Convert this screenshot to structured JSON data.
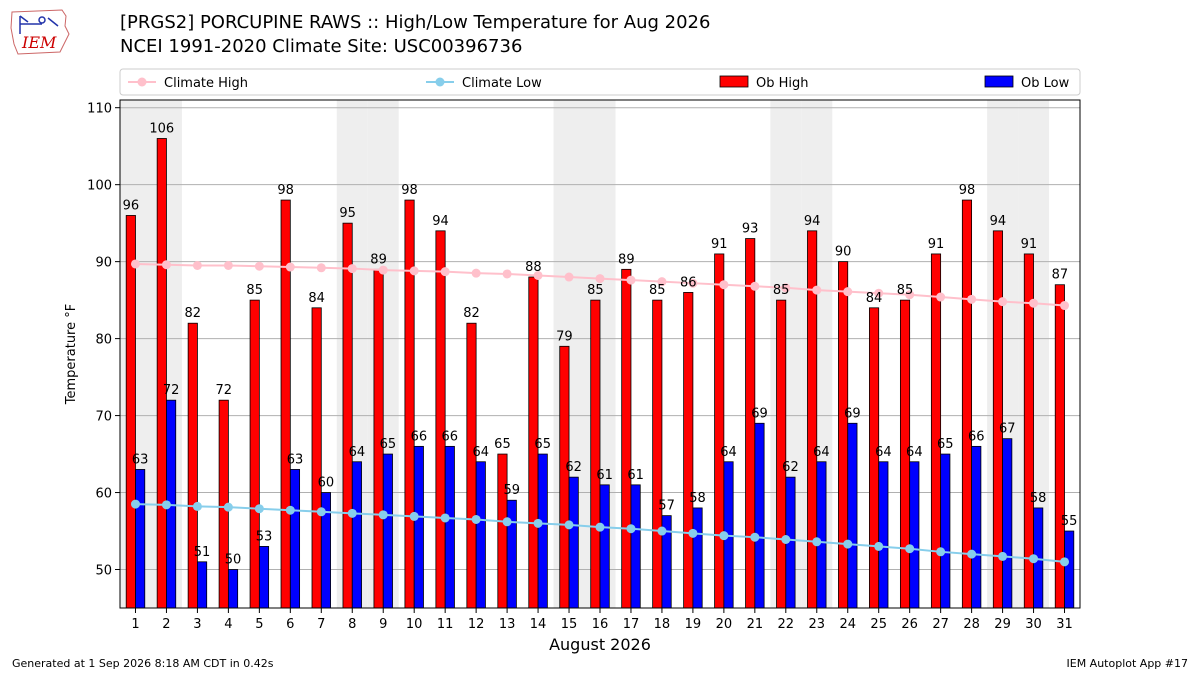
{
  "header": {
    "title_line1": "[PRGS2] PORCUPINE RAWS :: High/Low Temperature for Aug 2026",
    "title_line2": "NCEI 1991-2020 Climate Site: USC00396736",
    "logo_text": "IEM"
  },
  "footer": {
    "generated": "Generated at 1 Sep 2026 8:18 AM CDT in 0.42s",
    "app": "IEM Autoplot App #17"
  },
  "colors": {
    "ob_high": "#ff0000",
    "ob_low": "#0000ff",
    "climate_high": "#ffc0cb",
    "climate_low": "#87ceeb",
    "weekend_band": "#eeeeee",
    "logo": "#cc0000"
  },
  "chart_data": {
    "type": "bar",
    "xlabel": "August 2026",
    "ylabel": "Temperature °F",
    "ylim": [
      45,
      111
    ],
    "yticks": [
      50,
      60,
      70,
      80,
      90,
      100,
      110
    ],
    "grid": true,
    "legend_position": "top",
    "categories": [
      "1",
      "2",
      "3",
      "4",
      "5",
      "6",
      "7",
      "8",
      "9",
      "10",
      "11",
      "12",
      "13",
      "14",
      "15",
      "16",
      "17",
      "18",
      "19",
      "20",
      "21",
      "22",
      "23",
      "24",
      "25",
      "26",
      "27",
      "28",
      "29",
      "30",
      "31"
    ],
    "shaded_days": [
      1,
      2,
      8,
      9,
      15,
      16,
      22,
      23,
      29,
      30
    ],
    "series": [
      {
        "name": "Climate High",
        "kind": "line",
        "color": "#ffc0cb",
        "values": [
          89.7,
          89.6,
          89.5,
          89.5,
          89.4,
          89.3,
          89.2,
          89.1,
          88.9,
          88.8,
          88.7,
          88.5,
          88.4,
          88.2,
          88.0,
          87.8,
          87.6,
          87.4,
          87.2,
          87.0,
          86.8,
          86.6,
          86.3,
          86.1,
          85.9,
          85.7,
          85.4,
          85.1,
          84.8,
          84.6,
          84.3
        ]
      },
      {
        "name": "Climate Low",
        "kind": "line",
        "color": "#87ceeb",
        "values": [
          58.5,
          58.4,
          58.2,
          58.1,
          57.9,
          57.7,
          57.5,
          57.3,
          57.1,
          56.9,
          56.7,
          56.5,
          56.2,
          56.0,
          55.8,
          55.5,
          55.3,
          55.0,
          54.7,
          54.4,
          54.2,
          53.9,
          53.6,
          53.3,
          53.0,
          52.7,
          52.3,
          52.0,
          51.7,
          51.4,
          51.0
        ]
      },
      {
        "name": "Ob High",
        "kind": "bar",
        "color": "#ff0000",
        "values": [
          96,
          106,
          82,
          72,
          85,
          98,
          84,
          95,
          89,
          98,
          94,
          82,
          65,
          88,
          79,
          85,
          89,
          85,
          86,
          91,
          93,
          85,
          94,
          90,
          84,
          85,
          91,
          98,
          94,
          91,
          87
        ]
      },
      {
        "name": "Ob Low",
        "kind": "bar",
        "color": "#0000ff",
        "values": [
          63,
          72,
          51,
          50,
          53,
          63,
          60,
          64,
          65,
          66,
          66,
          64,
          59,
          65,
          62,
          61,
          61,
          57,
          58,
          64,
          69,
          62,
          64,
          69,
          64,
          64,
          65,
          66,
          67,
          58,
          55
        ]
      }
    ]
  }
}
